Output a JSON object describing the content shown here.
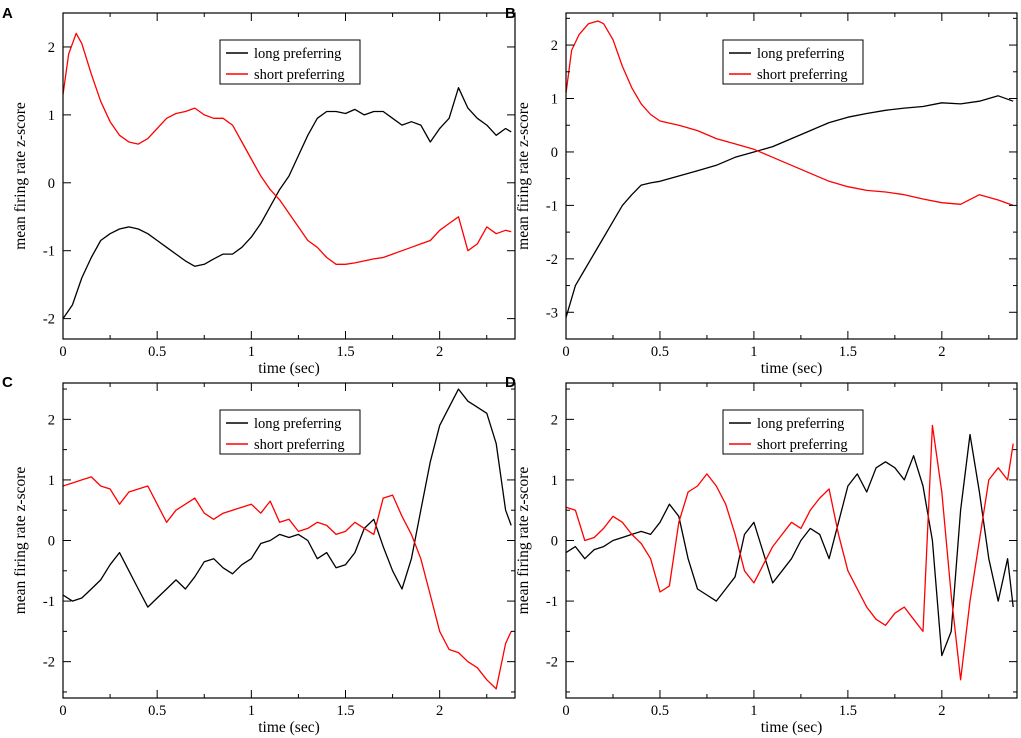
{
  "figure": {
    "colors": {
      "long": "#000000",
      "short": "#ff0000"
    }
  },
  "chart_data": [
    {
      "panel": "A",
      "type": "line",
      "xlabel": "time (sec)",
      "ylabel": "mean firing rate z-score",
      "xlim": [
        0,
        2.4
      ],
      "ylim": [
        -2.3,
        2.5
      ],
      "xticks": [
        0,
        0.5,
        1,
        1.5,
        2
      ],
      "xtick_labels": [
        "0",
        "0.5",
        "1",
        "1.5",
        "2"
      ],
      "yticks": [
        -2,
        -1,
        0,
        1,
        2
      ],
      "ytick_labels": [
        "-2",
        "-1",
        "0",
        "1",
        "2"
      ],
      "legend_position": "top-center",
      "series": [
        {
          "name": "long preferring",
          "color": "#000000",
          "x": [
            0,
            0.05,
            0.1,
            0.15,
            0.2,
            0.25,
            0.3,
            0.35,
            0.4,
            0.45,
            0.5,
            0.55,
            0.6,
            0.65,
            0.7,
            0.75,
            0.8,
            0.85,
            0.9,
            0.95,
            1.0,
            1.05,
            1.1,
            1.15,
            1.2,
            1.25,
            1.3,
            1.35,
            1.4,
            1.45,
            1.5,
            1.55,
            1.6,
            1.65,
            1.7,
            1.75,
            1.8,
            1.85,
            1.9,
            1.95,
            2.0,
            2.05,
            2.1,
            2.15,
            2.2,
            2.25,
            2.3,
            2.35,
            2.38
          ],
          "y": [
            -2.0,
            -1.8,
            -1.4,
            -1.1,
            -0.85,
            -0.75,
            -0.68,
            -0.65,
            -0.68,
            -0.75,
            -0.85,
            -0.95,
            -1.05,
            -1.15,
            -1.23,
            -1.2,
            -1.12,
            -1.05,
            -1.05,
            -0.95,
            -0.8,
            -0.6,
            -0.35,
            -0.1,
            0.1,
            0.4,
            0.7,
            0.95,
            1.05,
            1.05,
            1.02,
            1.08,
            1.0,
            1.05,
            1.05,
            0.95,
            0.85,
            0.9,
            0.85,
            0.6,
            0.8,
            0.95,
            1.4,
            1.1,
            0.95,
            0.85,
            0.7,
            0.8,
            0.75
          ]
        },
        {
          "name": "short preferring",
          "color": "#ff0000",
          "x": [
            0,
            0.03,
            0.07,
            0.1,
            0.15,
            0.2,
            0.25,
            0.3,
            0.35,
            0.4,
            0.45,
            0.5,
            0.55,
            0.6,
            0.65,
            0.7,
            0.75,
            0.8,
            0.85,
            0.9,
            0.95,
            1.0,
            1.05,
            1.1,
            1.15,
            1.2,
            1.25,
            1.3,
            1.35,
            1.4,
            1.45,
            1.5,
            1.55,
            1.6,
            1.65,
            1.7,
            1.75,
            1.8,
            1.85,
            1.9,
            1.95,
            2.0,
            2.05,
            2.1,
            2.15,
            2.2,
            2.25,
            2.3,
            2.35,
            2.38
          ],
          "y": [
            1.3,
            1.9,
            2.2,
            2.05,
            1.6,
            1.2,
            0.9,
            0.7,
            0.6,
            0.57,
            0.65,
            0.8,
            0.95,
            1.02,
            1.05,
            1.1,
            1.0,
            0.95,
            0.95,
            0.85,
            0.6,
            0.35,
            0.1,
            -0.1,
            -0.25,
            -0.45,
            -0.65,
            -0.85,
            -0.95,
            -1.1,
            -1.2,
            -1.2,
            -1.18,
            -1.15,
            -1.12,
            -1.1,
            -1.05,
            -1.0,
            -0.95,
            -0.9,
            -0.85,
            -0.7,
            -0.6,
            -0.5,
            -1.0,
            -0.9,
            -0.65,
            -0.75,
            -0.7,
            -0.72
          ]
        }
      ]
    },
    {
      "panel": "B",
      "type": "line",
      "xlabel": "time (sec)",
      "ylabel": "mean firing rate z-score",
      "xlim": [
        0,
        2.4
      ],
      "ylim": [
        -3.5,
        2.6
      ],
      "xticks": [
        0,
        0.5,
        1,
        1.5,
        2
      ],
      "xtick_labels": [
        "0",
        "0.5",
        "1",
        "1.5",
        "2"
      ],
      "yticks": [
        -3,
        -2,
        -1,
        0,
        1,
        2
      ],
      "ytick_labels": [
        "-3",
        "-2",
        "-1",
        "0",
        "1",
        "2"
      ],
      "legend_position": "top-center",
      "series": [
        {
          "name": "long preferring",
          "color": "#000000",
          "x": [
            0,
            0.05,
            0.1,
            0.15,
            0.2,
            0.25,
            0.3,
            0.35,
            0.4,
            0.45,
            0.5,
            0.6,
            0.7,
            0.8,
            0.9,
            1.0,
            1.1,
            1.2,
            1.3,
            1.4,
            1.5,
            1.6,
            1.7,
            1.8,
            1.9,
            2.0,
            2.1,
            2.2,
            2.3,
            2.38
          ],
          "y": [
            -3.1,
            -2.5,
            -2.2,
            -1.9,
            -1.6,
            -1.3,
            -1.0,
            -0.8,
            -0.62,
            -0.58,
            -0.55,
            -0.45,
            -0.35,
            -0.25,
            -0.1,
            0.0,
            0.1,
            0.25,
            0.4,
            0.55,
            0.65,
            0.72,
            0.78,
            0.82,
            0.85,
            0.92,
            0.9,
            0.95,
            1.05,
            0.95
          ]
        },
        {
          "name": "short preferring",
          "color": "#ff0000",
          "x": [
            0,
            0.03,
            0.07,
            0.12,
            0.17,
            0.2,
            0.25,
            0.3,
            0.35,
            0.4,
            0.45,
            0.5,
            0.6,
            0.7,
            0.8,
            0.9,
            1.0,
            1.1,
            1.2,
            1.3,
            1.4,
            1.5,
            1.6,
            1.7,
            1.8,
            1.9,
            2.0,
            2.1,
            2.2,
            2.3,
            2.38
          ],
          "y": [
            1.1,
            1.9,
            2.2,
            2.4,
            2.45,
            2.4,
            2.1,
            1.6,
            1.2,
            0.9,
            0.7,
            0.58,
            0.5,
            0.4,
            0.25,
            0.15,
            0.05,
            -0.1,
            -0.25,
            -0.4,
            -0.55,
            -0.65,
            -0.72,
            -0.75,
            -0.8,
            -0.88,
            -0.95,
            -0.98,
            -0.8,
            -0.9,
            -1.0
          ]
        }
      ]
    },
    {
      "panel": "C",
      "type": "line",
      "xlabel": "time (sec)",
      "ylabel": "mean firing rate z-score",
      "xlim": [
        0,
        2.4
      ],
      "ylim": [
        -2.6,
        2.6
      ],
      "xticks": [
        0,
        0.5,
        1,
        1.5,
        2
      ],
      "xtick_labels": [
        "0",
        "0.5",
        "1",
        "1.5",
        "2"
      ],
      "yticks": [
        -2,
        -1,
        0,
        1,
        2
      ],
      "ytick_labels": [
        "-2",
        "-1",
        "0",
        "1",
        "2"
      ],
      "legend_position": "top-center",
      "series": [
        {
          "name": "long preferring",
          "color": "#000000",
          "x": [
            0,
            0.05,
            0.1,
            0.15,
            0.2,
            0.25,
            0.3,
            0.35,
            0.4,
            0.45,
            0.5,
            0.55,
            0.6,
            0.65,
            0.7,
            0.75,
            0.8,
            0.85,
            0.9,
            0.95,
            1.0,
            1.05,
            1.1,
            1.15,
            1.2,
            1.25,
            1.3,
            1.35,
            1.4,
            1.45,
            1.5,
            1.55,
            1.6,
            1.65,
            1.7,
            1.75,
            1.8,
            1.85,
            1.9,
            1.95,
            2.0,
            2.05,
            2.1,
            2.15,
            2.2,
            2.25,
            2.3,
            2.35,
            2.38
          ],
          "y": [
            -0.9,
            -1.0,
            -0.95,
            -0.8,
            -0.65,
            -0.4,
            -0.2,
            -0.5,
            -0.8,
            -1.1,
            -0.95,
            -0.8,
            -0.65,
            -0.8,
            -0.6,
            -0.35,
            -0.3,
            -0.45,
            -0.55,
            -0.4,
            -0.3,
            -0.05,
            0.0,
            0.1,
            0.05,
            0.1,
            0.0,
            -0.3,
            -0.2,
            -0.45,
            -0.4,
            -0.2,
            0.2,
            0.35,
            -0.1,
            -0.5,
            -0.8,
            -0.3,
            0.5,
            1.3,
            1.9,
            2.2,
            2.5,
            2.3,
            2.2,
            2.1,
            1.6,
            0.5,
            0.25
          ]
        },
        {
          "name": "short preferring",
          "color": "#ff0000",
          "x": [
            0,
            0.05,
            0.1,
            0.15,
            0.2,
            0.25,
            0.3,
            0.35,
            0.4,
            0.45,
            0.5,
            0.55,
            0.6,
            0.65,
            0.7,
            0.75,
            0.8,
            0.85,
            0.9,
            0.95,
            1.0,
            1.05,
            1.1,
            1.15,
            1.2,
            1.25,
            1.3,
            1.35,
            1.4,
            1.45,
            1.5,
            1.55,
            1.6,
            1.65,
            1.7,
            1.75,
            1.8,
            1.85,
            1.9,
            1.95,
            2.0,
            2.05,
            2.1,
            2.15,
            2.2,
            2.25,
            2.3,
            2.35,
            2.38
          ],
          "y": [
            0.9,
            0.95,
            1.0,
            1.05,
            0.9,
            0.85,
            0.6,
            0.8,
            0.85,
            0.9,
            0.6,
            0.3,
            0.5,
            0.6,
            0.7,
            0.45,
            0.35,
            0.45,
            0.5,
            0.55,
            0.6,
            0.45,
            0.65,
            0.3,
            0.35,
            0.15,
            0.2,
            0.3,
            0.25,
            0.1,
            0.15,
            0.3,
            0.2,
            0.1,
            0.7,
            0.75,
            0.4,
            0.1,
            -0.3,
            -0.9,
            -1.5,
            -1.8,
            -1.85,
            -2.0,
            -2.1,
            -2.3,
            -2.45,
            -1.7,
            -1.5
          ]
        }
      ]
    },
    {
      "panel": "D",
      "type": "line",
      "xlabel": "time (sec)",
      "ylabel": "mean firing rate z-score",
      "xlim": [
        0,
        2.4
      ],
      "ylim": [
        -2.6,
        2.6
      ],
      "xticks": [
        0,
        0.5,
        1,
        1.5,
        2
      ],
      "xtick_labels": [
        "0",
        "0.5",
        "1",
        "1.5",
        "2"
      ],
      "yticks": [
        -2,
        -1,
        0,
        1,
        2
      ],
      "ytick_labels": [
        "-2",
        "-1",
        "0",
        "1",
        "2"
      ],
      "legend_position": "top-center",
      "series": [
        {
          "name": "long preferring",
          "color": "#000000",
          "x": [
            0,
            0.05,
            0.1,
            0.15,
            0.2,
            0.25,
            0.3,
            0.35,
            0.4,
            0.45,
            0.5,
            0.55,
            0.6,
            0.65,
            0.7,
            0.75,
            0.8,
            0.85,
            0.9,
            0.95,
            1.0,
            1.05,
            1.1,
            1.15,
            1.2,
            1.25,
            1.3,
            1.35,
            1.4,
            1.45,
            1.5,
            1.55,
            1.6,
            1.65,
            1.7,
            1.75,
            1.8,
            1.85,
            1.9,
            1.95,
            2.0,
            2.05,
            2.1,
            2.15,
            2.2,
            2.25,
            2.3,
            2.35,
            2.38
          ],
          "y": [
            -0.2,
            -0.1,
            -0.3,
            -0.15,
            -0.1,
            0.0,
            0.05,
            0.1,
            0.15,
            0.1,
            0.3,
            0.6,
            0.4,
            -0.3,
            -0.8,
            -0.9,
            -1.0,
            -0.8,
            -0.6,
            0.1,
            0.3,
            -0.2,
            -0.7,
            -0.5,
            -0.3,
            0.0,
            0.2,
            0.1,
            -0.3,
            0.3,
            0.9,
            1.1,
            0.8,
            1.2,
            1.3,
            1.2,
            1.0,
            1.4,
            0.9,
            0.0,
            -1.9,
            -1.5,
            0.5,
            1.75,
            0.8,
            -0.3,
            -1.0,
            -0.3,
            -1.1
          ]
        },
        {
          "name": "short preferring",
          "color": "#ff0000",
          "x": [
            0,
            0.05,
            0.1,
            0.15,
            0.2,
            0.25,
            0.3,
            0.35,
            0.4,
            0.45,
            0.5,
            0.55,
            0.6,
            0.65,
            0.7,
            0.75,
            0.8,
            0.85,
            0.9,
            0.95,
            1.0,
            1.05,
            1.1,
            1.15,
            1.2,
            1.25,
            1.3,
            1.35,
            1.4,
            1.45,
            1.5,
            1.55,
            1.6,
            1.65,
            1.7,
            1.75,
            1.8,
            1.85,
            1.9,
            1.95,
            2.0,
            2.05,
            2.1,
            2.15,
            2.2,
            2.25,
            2.3,
            2.35,
            2.38
          ],
          "y": [
            0.55,
            0.5,
            0.0,
            0.05,
            0.2,
            0.4,
            0.3,
            0.1,
            -0.05,
            -0.3,
            -0.85,
            -0.75,
            0.3,
            0.8,
            0.9,
            1.1,
            0.9,
            0.6,
            0.1,
            -0.5,
            -0.7,
            -0.4,
            -0.1,
            0.1,
            0.3,
            0.2,
            0.5,
            0.7,
            0.85,
            0.1,
            -0.5,
            -0.8,
            -1.1,
            -1.3,
            -1.4,
            -1.2,
            -1.1,
            -1.3,
            -1.5,
            1.9,
            0.8,
            -0.9,
            -2.3,
            -1.0,
            0.0,
            1.0,
            1.2,
            1.0,
            1.6
          ]
        }
      ]
    }
  ]
}
